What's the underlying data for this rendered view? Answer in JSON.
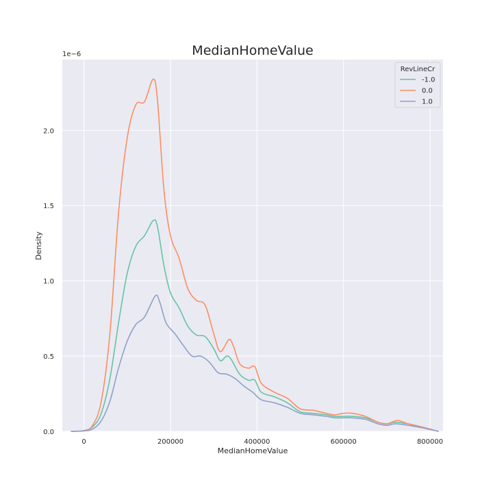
{
  "chart_data": {
    "type": "line",
    "title": "MedianHomeValue",
    "xlabel": "MedianHomeValue",
    "ylabel": "Density",
    "y_offset_text": "1e−6",
    "y_scale_exponent": -6,
    "xlim": [
      -50000,
      830000
    ],
    "ylim": [
      0,
      2.47
    ],
    "x_ticks": [
      0,
      200000,
      400000,
      600000,
      800000
    ],
    "x_tick_labels": [
      "0",
      "200000",
      "400000",
      "600000",
      "800000"
    ],
    "y_ticks": [
      0,
      0.5,
      1.0,
      1.5,
      2.0
    ],
    "y_tick_labels": [
      "0.0",
      "0.5",
      "1.0",
      "1.5",
      "2.0"
    ],
    "grid": true,
    "legend": {
      "title": "RevLineCr",
      "placement": "top-right"
    },
    "series": [
      {
        "name": "-1.0",
        "color": "#66c2a5",
        "points": [
          [
            -30000,
            0
          ],
          [
            0,
            0.005
          ],
          [
            20000,
            0.03
          ],
          [
            40000,
            0.12
          ],
          [
            60000,
            0.35
          ],
          [
            80000,
            0.72
          ],
          [
            100000,
            1.05
          ],
          [
            120000,
            1.23
          ],
          [
            140000,
            1.3
          ],
          [
            160000,
            1.4
          ],
          [
            170000,
            1.36
          ],
          [
            185000,
            1.1
          ],
          [
            200000,
            0.92
          ],
          [
            220000,
            0.82
          ],
          [
            240000,
            0.7
          ],
          [
            260000,
            0.64
          ],
          [
            280000,
            0.63
          ],
          [
            300000,
            0.55
          ],
          [
            315000,
            0.47
          ],
          [
            330000,
            0.5
          ],
          [
            340000,
            0.48
          ],
          [
            360000,
            0.38
          ],
          [
            380000,
            0.34
          ],
          [
            395000,
            0.34
          ],
          [
            410000,
            0.26
          ],
          [
            440000,
            0.23
          ],
          [
            470000,
            0.19
          ],
          [
            500000,
            0.13
          ],
          [
            530000,
            0.12
          ],
          [
            560000,
            0.11
          ],
          [
            580000,
            0.1
          ],
          [
            600000,
            0.1
          ],
          [
            620000,
            0.1
          ],
          [
            650000,
            0.09
          ],
          [
            680000,
            0.06
          ],
          [
            700000,
            0.05
          ],
          [
            720000,
            0.06
          ],
          [
            750000,
            0.05
          ],
          [
            780000,
            0.03
          ],
          [
            800000,
            0.015
          ],
          [
            820000,
            0
          ]
        ]
      },
      {
        "name": "0.0",
        "color": "#fc8d62",
        "points": [
          [
            -30000,
            0
          ],
          [
            0,
            0.005
          ],
          [
            20000,
            0.04
          ],
          [
            40000,
            0.2
          ],
          [
            60000,
            0.65
          ],
          [
            80000,
            1.45
          ],
          [
            100000,
            1.95
          ],
          [
            120000,
            2.17
          ],
          [
            140000,
            2.19
          ],
          [
            160000,
            2.34
          ],
          [
            170000,
            2.2
          ],
          [
            185000,
            1.6
          ],
          [
            200000,
            1.3
          ],
          [
            220000,
            1.15
          ],
          [
            240000,
            0.95
          ],
          [
            260000,
            0.87
          ],
          [
            280000,
            0.84
          ],
          [
            300000,
            0.65
          ],
          [
            315000,
            0.53
          ],
          [
            335000,
            0.61
          ],
          [
            345000,
            0.57
          ],
          [
            360000,
            0.45
          ],
          [
            380000,
            0.42
          ],
          [
            395000,
            0.43
          ],
          [
            410000,
            0.32
          ],
          [
            440000,
            0.26
          ],
          [
            470000,
            0.22
          ],
          [
            500000,
            0.15
          ],
          [
            530000,
            0.14
          ],
          [
            560000,
            0.12
          ],
          [
            580000,
            0.11
          ],
          [
            600000,
            0.12
          ],
          [
            620000,
            0.12
          ],
          [
            650000,
            0.1
          ],
          [
            680000,
            0.06
          ],
          [
            700000,
            0.05
          ],
          [
            720000,
            0.07
          ],
          [
            730000,
            0.07
          ],
          [
            750000,
            0.05
          ],
          [
            780000,
            0.03
          ],
          [
            800000,
            0.015
          ],
          [
            820000,
            0
          ]
        ]
      },
      {
        "name": "1.0",
        "color": "#8da0cb",
        "points": [
          [
            -30000,
            0
          ],
          [
            0,
            0.003
          ],
          [
            20000,
            0.015
          ],
          [
            40000,
            0.07
          ],
          [
            60000,
            0.2
          ],
          [
            80000,
            0.42
          ],
          [
            100000,
            0.6
          ],
          [
            120000,
            0.71
          ],
          [
            140000,
            0.76
          ],
          [
            165000,
            0.9
          ],
          [
            175000,
            0.86
          ],
          [
            190000,
            0.72
          ],
          [
            210000,
            0.65
          ],
          [
            230000,
            0.57
          ],
          [
            250000,
            0.5
          ],
          [
            270000,
            0.5
          ],
          [
            290000,
            0.46
          ],
          [
            310000,
            0.39
          ],
          [
            330000,
            0.38
          ],
          [
            350000,
            0.35
          ],
          [
            370000,
            0.3
          ],
          [
            390000,
            0.26
          ],
          [
            410000,
            0.21
          ],
          [
            440000,
            0.19
          ],
          [
            470000,
            0.16
          ],
          [
            500000,
            0.12
          ],
          [
            530000,
            0.11
          ],
          [
            560000,
            0.1
          ],
          [
            580000,
            0.09
          ],
          [
            600000,
            0.09
          ],
          [
            620000,
            0.09
          ],
          [
            650000,
            0.08
          ],
          [
            680000,
            0.05
          ],
          [
            700000,
            0.04
          ],
          [
            720000,
            0.05
          ],
          [
            750000,
            0.04
          ],
          [
            780000,
            0.025
          ],
          [
            800000,
            0.012
          ],
          [
            820000,
            0
          ]
        ]
      }
    ]
  }
}
